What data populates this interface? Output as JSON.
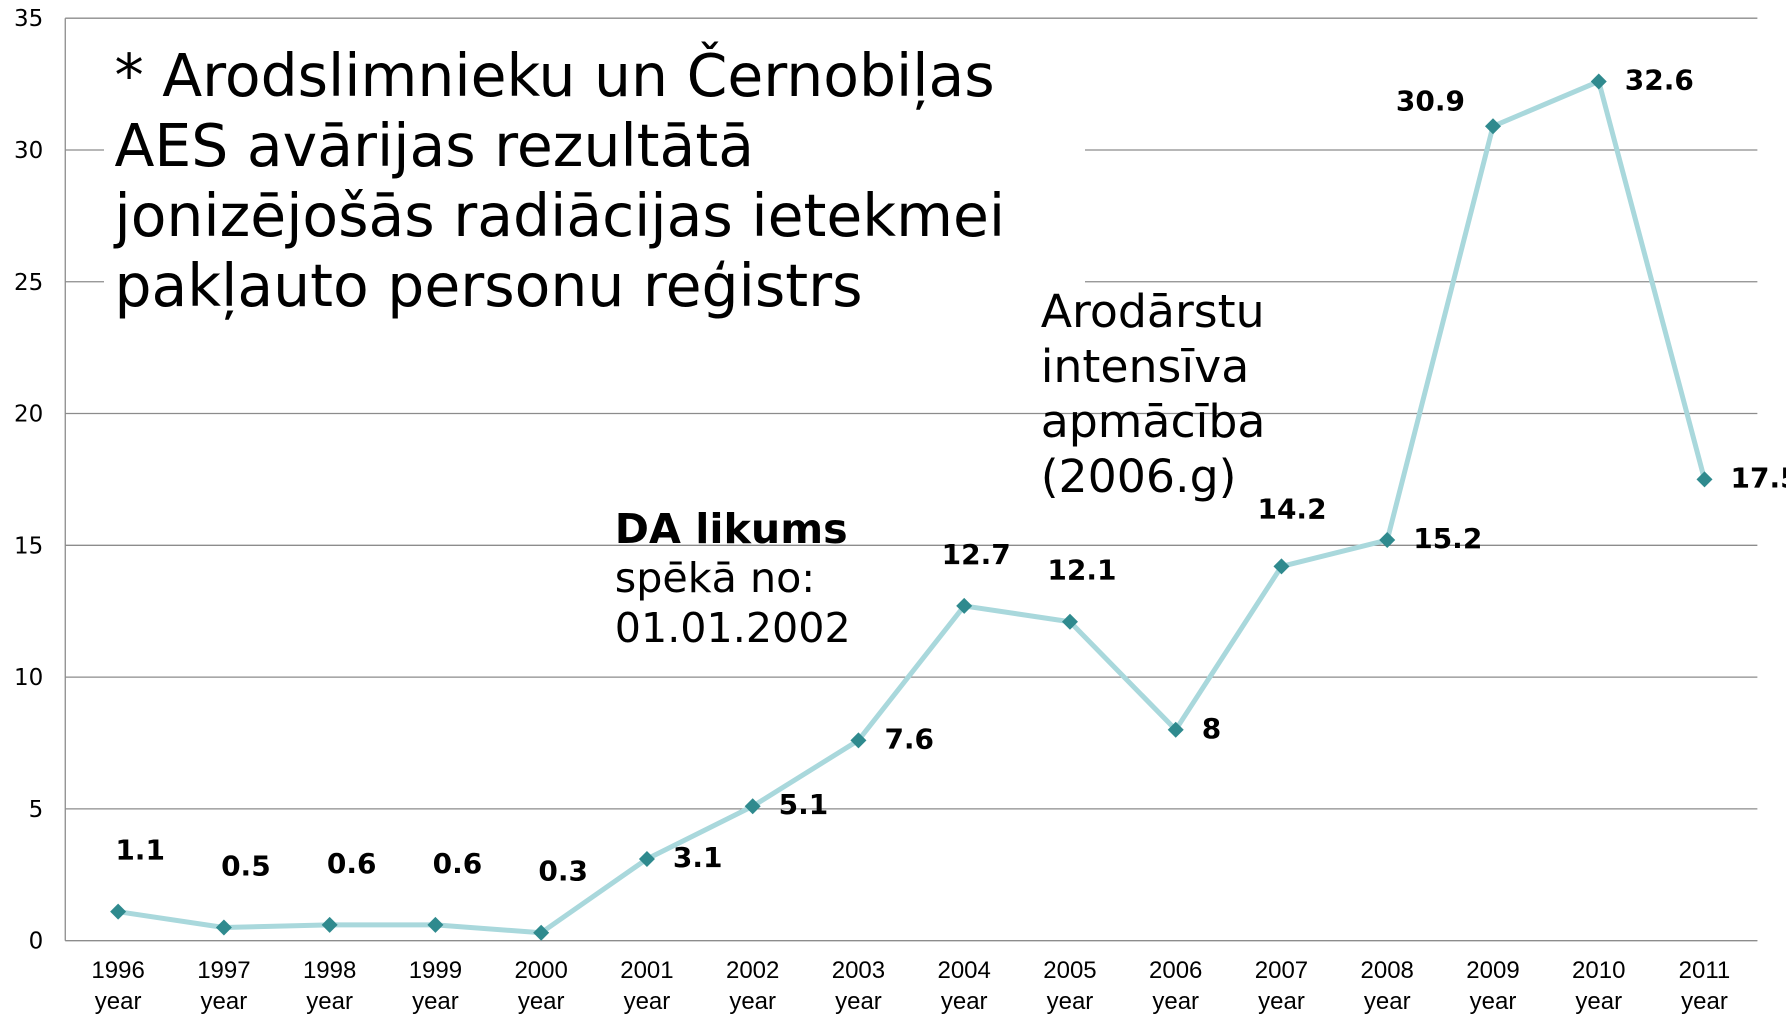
{
  "chart_data": {
    "type": "line",
    "categories": [
      "1996 year",
      "1997 year",
      "1998 year",
      "1999 year",
      "2000 year",
      "2001 year",
      "2002 year",
      "2003 year",
      "2004 year",
      "2005 year",
      "2006 year",
      "2007 year",
      "2008 year",
      "2009 year",
      "2010 year",
      "2011 year"
    ],
    "values": [
      1.1,
      0.5,
      0.6,
      0.6,
      0.3,
      3.1,
      5.1,
      7.6,
      12.7,
      12.1,
      8,
      14.2,
      15.2,
      30.9,
      32.6,
      17.5
    ],
    "line_color": "#a9d8dc",
    "marker_color": "#2f8a8e",
    "ylim": [
      0,
      35
    ],
    "yticks": [
      0,
      5,
      10,
      15,
      20,
      25,
      30,
      35
    ],
    "grid": true,
    "annotations": [
      {
        "lines": [
          "* Arodslimnieku un Černobiļas",
          "AES avārijas rezultātā",
          "jonizējošās radiācijas ietekmei",
          "pakļauto personu reģistrs"
        ]
      },
      {
        "lines": [
          "Arodārstu",
          "intensīva",
          "apmācība",
          "(2006.g)"
        ]
      },
      {
        "lines": [
          "DA likums",
          "spēkā no:",
          "01.01.2002"
        ]
      }
    ]
  }
}
